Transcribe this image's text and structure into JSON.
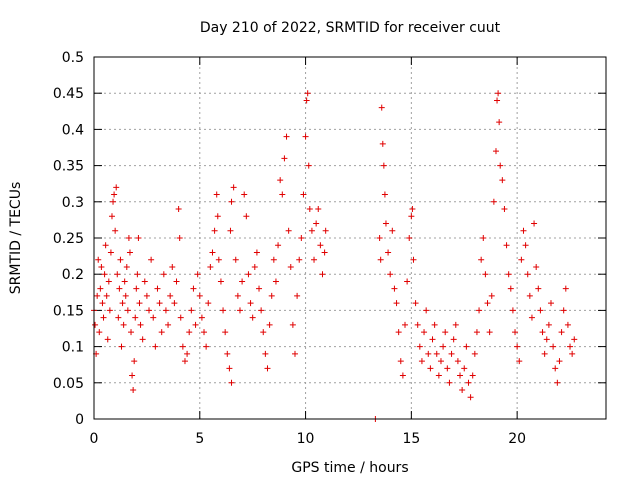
{
  "chart_data": {
    "type": "scatter",
    "title": "Day 210 of 2022, SRMTID for receiver cuut",
    "xlabel": "GPS time / hours",
    "ylabel": "SRMTID / TECUs",
    "xlim": [
      0,
      24.2
    ],
    "ylim": [
      0,
      0.5
    ],
    "x_ticks": [
      0,
      5,
      10,
      15,
      20
    ],
    "x_tick_labels": [
      "0",
      "5",
      "10",
      "15",
      "20"
    ],
    "y_ticks": [
      0,
      0.05,
      0.1,
      0.15,
      0.2,
      0.25,
      0.3,
      0.35,
      0.4,
      0.45,
      0.5
    ],
    "y_tick_labels": [
      "0",
      "0.05",
      "0.1",
      "0.15",
      "0.2",
      "0.25",
      "0.3",
      "0.35",
      "0.4",
      "0.45",
      "0.5"
    ],
    "grid": true,
    "marker": "plus",
    "series": [
      {
        "name": "SRMTID",
        "color": "#e00000",
        "points": [
          [
            0.0,
            0.15
          ],
          [
            0.05,
            0.13
          ],
          [
            0.1,
            0.09
          ],
          [
            0.15,
            0.17
          ],
          [
            0.2,
            0.22
          ],
          [
            0.25,
            0.12
          ],
          [
            0.3,
            0.18
          ],
          [
            0.35,
            0.21
          ],
          [
            0.4,
            0.16
          ],
          [
            0.45,
            0.14
          ],
          [
            0.5,
            0.2
          ],
          [
            0.55,
            0.24
          ],
          [
            0.6,
            0.17
          ],
          [
            0.65,
            0.11
          ],
          [
            0.7,
            0.19
          ],
          [
            0.75,
            0.15
          ],
          [
            0.8,
            0.23
          ],
          [
            0.85,
            0.28
          ],
          [
            0.9,
            0.3
          ],
          [
            0.95,
            0.31
          ],
          [
            1.0,
            0.26
          ],
          [
            1.05,
            0.32
          ],
          [
            1.1,
            0.2
          ],
          [
            1.15,
            0.14
          ],
          [
            1.2,
            0.18
          ],
          [
            1.25,
            0.22
          ],
          [
            1.3,
            0.1
          ],
          [
            1.35,
            0.16
          ],
          [
            1.4,
            0.13
          ],
          [
            1.45,
            0.19
          ],
          [
            1.5,
            0.17
          ],
          [
            1.55,
            0.21
          ],
          [
            1.6,
            0.15
          ],
          [
            1.65,
            0.25
          ],
          [
            1.7,
            0.23
          ],
          [
            1.75,
            0.12
          ],
          [
            1.8,
            0.06
          ],
          [
            1.85,
            0.04
          ],
          [
            1.9,
            0.08
          ],
          [
            1.95,
            0.14
          ],
          [
            2.0,
            0.18
          ],
          [
            2.05,
            0.2
          ],
          [
            2.1,
            0.25
          ],
          [
            2.15,
            0.16
          ],
          [
            2.2,
            0.13
          ],
          [
            2.3,
            0.11
          ],
          [
            2.4,
            0.19
          ],
          [
            2.5,
            0.17
          ],
          [
            2.6,
            0.15
          ],
          [
            2.7,
            0.22
          ],
          [
            2.8,
            0.14
          ],
          [
            2.9,
            0.1
          ],
          [
            3.0,
            0.18
          ],
          [
            3.1,
            0.16
          ],
          [
            3.2,
            0.12
          ],
          [
            3.3,
            0.2
          ],
          [
            3.4,
            0.15
          ],
          [
            3.5,
            0.13
          ],
          [
            3.6,
            0.17
          ],
          [
            3.7,
            0.21
          ],
          [
            3.8,
            0.16
          ],
          [
            3.9,
            0.19
          ],
          [
            4.0,
            0.29
          ],
          [
            4.05,
            0.25
          ],
          [
            4.1,
            0.14
          ],
          [
            4.2,
            0.1
          ],
          [
            4.3,
            0.08
          ],
          [
            4.4,
            0.09
          ],
          [
            4.5,
            0.12
          ],
          [
            4.6,
            0.15
          ],
          [
            4.7,
            0.18
          ],
          [
            4.8,
            0.13
          ],
          [
            4.9,
            0.2
          ],
          [
            5.0,
            0.17
          ],
          [
            5.1,
            0.14
          ],
          [
            5.2,
            0.12
          ],
          [
            5.3,
            0.1
          ],
          [
            5.4,
            0.16
          ],
          [
            5.5,
            0.21
          ],
          [
            5.6,
            0.23
          ],
          [
            5.7,
            0.26
          ],
          [
            5.8,
            0.31
          ],
          [
            5.85,
            0.28
          ],
          [
            5.9,
            0.22
          ],
          [
            6.0,
            0.19
          ],
          [
            6.1,
            0.15
          ],
          [
            6.2,
            0.12
          ],
          [
            6.3,
            0.09
          ],
          [
            6.4,
            0.07
          ],
          [
            6.5,
            0.05
          ],
          [
            6.45,
            0.26
          ],
          [
            6.5,
            0.3
          ],
          [
            6.6,
            0.32
          ],
          [
            6.7,
            0.22
          ],
          [
            6.8,
            0.17
          ],
          [
            6.9,
            0.15
          ],
          [
            7.0,
            0.19
          ],
          [
            7.1,
            0.31
          ],
          [
            7.2,
            0.28
          ],
          [
            7.3,
            0.2
          ],
          [
            7.4,
            0.16
          ],
          [
            7.5,
            0.14
          ],
          [
            7.6,
            0.21
          ],
          [
            7.7,
            0.23
          ],
          [
            7.8,
            0.18
          ],
          [
            7.9,
            0.15
          ],
          [
            8.0,
            0.12
          ],
          [
            8.1,
            0.09
          ],
          [
            8.2,
            0.07
          ],
          [
            8.3,
            0.13
          ],
          [
            8.4,
            0.17
          ],
          [
            8.5,
            0.22
          ],
          [
            8.6,
            0.19
          ],
          [
            8.7,
            0.24
          ],
          [
            8.8,
            0.33
          ],
          [
            8.9,
            0.31
          ],
          [
            9.0,
            0.36
          ],
          [
            9.1,
            0.39
          ],
          [
            9.2,
            0.26
          ],
          [
            9.3,
            0.21
          ],
          [
            9.4,
            0.13
          ],
          [
            9.5,
            0.09
          ],
          [
            9.6,
            0.17
          ],
          [
            9.7,
            0.22
          ],
          [
            9.8,
            0.25
          ],
          [
            9.9,
            0.31
          ],
          [
            10.0,
            0.39
          ],
          [
            10.05,
            0.44
          ],
          [
            10.1,
            0.45
          ],
          [
            10.15,
            0.35
          ],
          [
            10.2,
            0.29
          ],
          [
            10.3,
            0.26
          ],
          [
            10.4,
            0.22
          ],
          [
            10.5,
            0.27
          ],
          [
            10.6,
            0.29
          ],
          [
            10.7,
            0.24
          ],
          [
            10.8,
            0.2
          ],
          [
            10.9,
            0.23
          ],
          [
            10.95,
            0.26
          ],
          [
            13.3,
            0.0
          ],
          [
            13.5,
            0.25
          ],
          [
            13.55,
            0.22
          ],
          [
            13.6,
            0.43
          ],
          [
            13.65,
            0.38
          ],
          [
            13.7,
            0.35
          ],
          [
            13.75,
            0.31
          ],
          [
            13.8,
            0.27
          ],
          [
            13.9,
            0.23
          ],
          [
            14.0,
            0.2
          ],
          [
            14.1,
            0.26
          ],
          [
            14.2,
            0.18
          ],
          [
            14.3,
            0.16
          ],
          [
            14.4,
            0.12
          ],
          [
            14.5,
            0.08
          ],
          [
            14.6,
            0.06
          ],
          [
            14.7,
            0.13
          ],
          [
            14.8,
            0.19
          ],
          [
            14.9,
            0.25
          ],
          [
            15.0,
            0.28
          ],
          [
            15.05,
            0.29
          ],
          [
            15.1,
            0.22
          ],
          [
            15.2,
            0.16
          ],
          [
            15.3,
            0.13
          ],
          [
            15.4,
            0.1
          ],
          [
            15.5,
            0.08
          ],
          [
            15.6,
            0.12
          ],
          [
            15.7,
            0.15
          ],
          [
            15.8,
            0.09
          ],
          [
            15.9,
            0.07
          ],
          [
            16.0,
            0.11
          ],
          [
            16.1,
            0.13
          ],
          [
            16.2,
            0.09
          ],
          [
            16.3,
            0.06
          ],
          [
            16.4,
            0.08
          ],
          [
            16.5,
            0.1
          ],
          [
            16.6,
            0.12
          ],
          [
            16.7,
            0.07
          ],
          [
            16.8,
            0.05
          ],
          [
            16.9,
            0.09
          ],
          [
            17.0,
            0.11
          ],
          [
            17.1,
            0.13
          ],
          [
            17.2,
            0.08
          ],
          [
            17.3,
            0.06
          ],
          [
            17.4,
            0.04
          ],
          [
            17.5,
            0.07
          ],
          [
            17.6,
            0.1
          ],
          [
            17.7,
            0.05
          ],
          [
            17.8,
            0.03
          ],
          [
            17.9,
            0.06
          ],
          [
            18.0,
            0.09
          ],
          [
            18.1,
            0.12
          ],
          [
            18.2,
            0.15
          ],
          [
            18.3,
            0.22
          ],
          [
            18.4,
            0.25
          ],
          [
            18.5,
            0.2
          ],
          [
            18.6,
            0.16
          ],
          [
            18.7,
            0.12
          ],
          [
            18.8,
            0.17
          ],
          [
            18.9,
            0.3
          ],
          [
            19.0,
            0.37
          ],
          [
            19.05,
            0.44
          ],
          [
            19.1,
            0.45
          ],
          [
            19.15,
            0.41
          ],
          [
            19.2,
            0.35
          ],
          [
            19.3,
            0.33
          ],
          [
            19.4,
            0.29
          ],
          [
            19.5,
            0.24
          ],
          [
            19.6,
            0.2
          ],
          [
            19.7,
            0.18
          ],
          [
            19.8,
            0.15
          ],
          [
            19.9,
            0.12
          ],
          [
            20.0,
            0.1
          ],
          [
            20.1,
            0.08
          ],
          [
            20.2,
            0.22
          ],
          [
            20.3,
            0.26
          ],
          [
            20.4,
            0.24
          ],
          [
            20.5,
            0.2
          ],
          [
            20.6,
            0.17
          ],
          [
            20.7,
            0.14
          ],
          [
            20.8,
            0.27
          ],
          [
            20.9,
            0.21
          ],
          [
            21.0,
            0.18
          ],
          [
            21.1,
            0.15
          ],
          [
            21.2,
            0.12
          ],
          [
            21.3,
            0.09
          ],
          [
            21.4,
            0.11
          ],
          [
            21.5,
            0.13
          ],
          [
            21.6,
            0.16
          ],
          [
            21.7,
            0.1
          ],
          [
            21.8,
            0.07
          ],
          [
            21.9,
            0.05
          ],
          [
            22.0,
            0.08
          ],
          [
            22.1,
            0.12
          ],
          [
            22.2,
            0.15
          ],
          [
            22.3,
            0.18
          ],
          [
            22.4,
            0.13
          ],
          [
            22.5,
            0.1
          ],
          [
            22.6,
            0.09
          ],
          [
            22.7,
            0.11
          ]
        ]
      }
    ]
  }
}
